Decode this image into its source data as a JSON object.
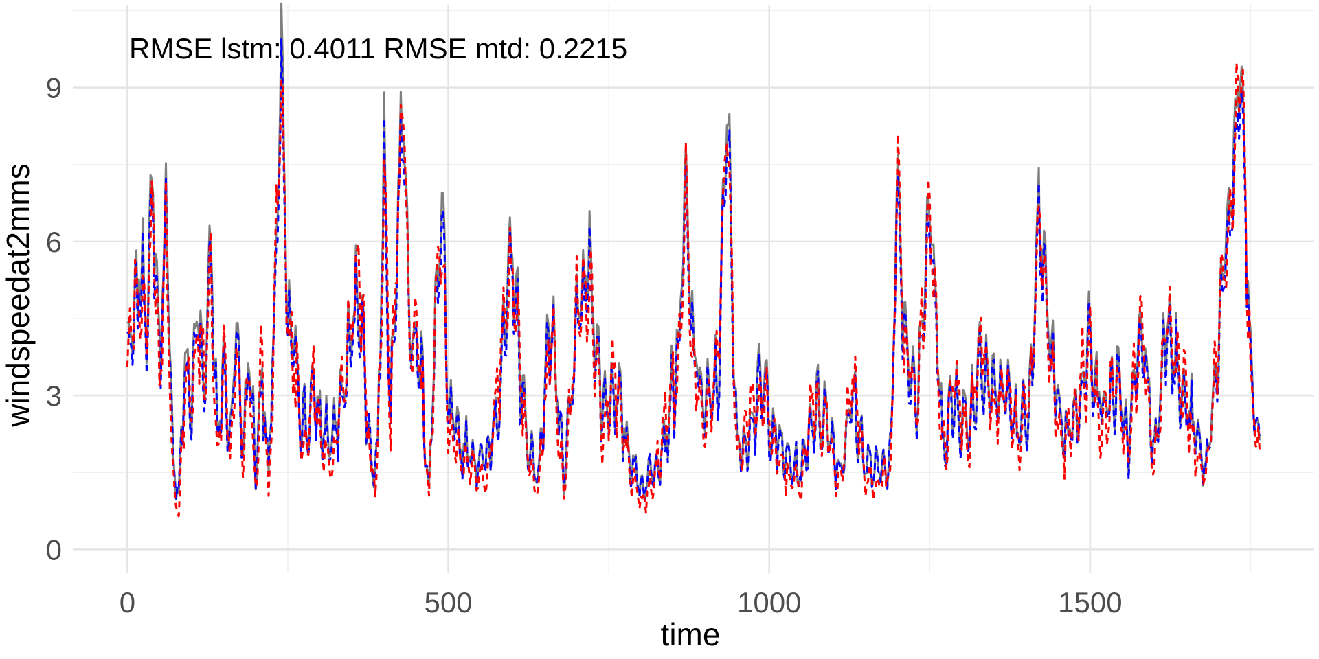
{
  "chart_data": {
    "type": "line",
    "title": "",
    "annotation": "RMSE lstm: 0.4011 RMSE mtd: 0.2215",
    "xlabel": "time",
    "ylabel": "windspeedat2mms",
    "xlim": [
      -85,
      1848
    ],
    "ylim": [
      -0.45,
      10.6
    ],
    "x_ticks": [
      0,
      500,
      1000,
      1500
    ],
    "x_tick_labels": [
      "0",
      "500",
      "1000",
      "1500"
    ],
    "y_ticks": [
      0,
      3,
      6,
      9
    ],
    "y_tick_labels": [
      "0",
      "3",
      "6",
      "9"
    ],
    "grid": true,
    "legend": "none",
    "n_points": 1765,
    "series": [
      {
        "style": "solid",
        "color": "#7f7f7f",
        "sampled_x": [
          0,
          10,
          20,
          30,
          40,
          50,
          60,
          70,
          80,
          90,
          100,
          110,
          120,
          130,
          140,
          150,
          160,
          170,
          180,
          190,
          200,
          210,
          220,
          230,
          240,
          250,
          260,
          270,
          280,
          290,
          300,
          320,
          340,
          360,
          380,
          390,
          400,
          410,
          420,
          430,
          440,
          450,
          460,
          470,
          480,
          490,
          500,
          520,
          540,
          560,
          580,
          600,
          620,
          640,
          660,
          680,
          700,
          720,
          740,
          760,
          780,
          800,
          820,
          840,
          860,
          870,
          880,
          900,
          920,
          935,
          950,
          970,
          990,
          1010,
          1030,
          1050,
          1070,
          1090,
          1110,
          1130,
          1150,
          1170,
          1190,
          1200,
          1210,
          1230,
          1250,
          1270,
          1290,
          1310,
          1330,
          1350,
          1370,
          1390,
          1410,
          1420,
          1440,
          1460,
          1480,
          1500,
          1520,
          1540,
          1560,
          1580,
          1600,
          1620,
          1640,
          1660,
          1680,
          1700,
          1720,
          1735,
          1750,
          1765
        ],
        "sampled_y": [
          3.9,
          4.3,
          5.6,
          4.8,
          7.1,
          3.8,
          6.8,
          2.0,
          1.0,
          3.8,
          2.8,
          4.9,
          3.2,
          6.4,
          2.0,
          3.6,
          2.2,
          4.5,
          1.9,
          3.9,
          1.5,
          3.6,
          1.3,
          5.0,
          9.7,
          4.3,
          4.0,
          2.8,
          2.3,
          3.1,
          2.5,
          2.1,
          3.4,
          5.2,
          1.6,
          1.9,
          7.9,
          2.6,
          6.4,
          9.1,
          4.0,
          4.1,
          3.2,
          1.1,
          4.4,
          6.9,
          2.6,
          2.1,
          1.8,
          1.7,
          3.2,
          5.9,
          2.3,
          1.4,
          4.8,
          1.2,
          4.4,
          5.6,
          2.8,
          3.2,
          2.0,
          1.2,
          1.6,
          2.3,
          4.1,
          7.1,
          4.2,
          2.7,
          3.3,
          8.8,
          1.9,
          2.4,
          3.3,
          2.2,
          1.7,
          1.5,
          2.8,
          2.6,
          1.5,
          3.0,
          1.7,
          1.5,
          1.9,
          7.4,
          4.4,
          3.1,
          6.8,
          2.2,
          3.0,
          2.4,
          3.9,
          3.1,
          3.1,
          2.2,
          3.3,
          6.6,
          3.7,
          2.2,
          2.8,
          4.1,
          2.7,
          3.3,
          2.1,
          4.5,
          1.8,
          4.8,
          3.1,
          2.5,
          1.5,
          4.1,
          7.1,
          9.6,
          3.5,
          1.8
        ]
      },
      {
        "style": "dashed",
        "color": "#0000ff",
        "sampled_x": [
          0,
          10,
          20,
          30,
          40,
          50,
          60,
          70,
          80,
          90,
          100,
          110,
          120,
          130,
          140,
          150,
          160,
          170,
          180,
          190,
          200,
          210,
          220,
          230,
          240,
          250,
          260,
          270,
          280,
          290,
          300,
          320,
          340,
          360,
          380,
          390,
          400,
          410,
          420,
          430,
          440,
          450,
          460,
          470,
          480,
          490,
          500,
          520,
          540,
          560,
          580,
          600,
          620,
          640,
          660,
          680,
          700,
          720,
          740,
          760,
          780,
          800,
          820,
          840,
          860,
          870,
          880,
          900,
          920,
          935,
          950,
          970,
          990,
          1010,
          1030,
          1050,
          1070,
          1090,
          1110,
          1130,
          1150,
          1170,
          1190,
          1200,
          1210,
          1230,
          1250,
          1270,
          1290,
          1310,
          1330,
          1350,
          1370,
          1390,
          1410,
          1420,
          1440,
          1460,
          1480,
          1500,
          1520,
          1540,
          1560,
          1580,
          1600,
          1620,
          1640,
          1660,
          1680,
          1700,
          1720,
          1735,
          1750,
          1765
        ],
        "sampled_y": [
          3.7,
          4.1,
          5.3,
          4.6,
          6.6,
          3.6,
          6.5,
          1.9,
          1.1,
          3.5,
          2.7,
          4.6,
          3.0,
          6.1,
          2.0,
          3.4,
          2.1,
          4.3,
          1.9,
          3.7,
          1.5,
          3.4,
          1.4,
          4.8,
          9.0,
          4.1,
          3.8,
          2.7,
          2.3,
          3.0,
          2.4,
          2.0,
          3.2,
          5.0,
          1.7,
          1.9,
          7.4,
          2.5,
          6.1,
          8.6,
          3.9,
          4.0,
          3.1,
          1.2,
          4.2,
          6.5,
          2.5,
          2.0,
          1.8,
          1.7,
          3.1,
          5.6,
          2.2,
          1.4,
          4.6,
          1.3,
          4.2,
          5.3,
          2.7,
          3.1,
          1.9,
          1.2,
          1.6,
          2.2,
          3.9,
          6.7,
          4.0,
          2.6,
          3.2,
          8.4,
          1.9,
          2.3,
          3.1,
          2.1,
          1.7,
          1.5,
          2.7,
          2.5,
          1.5,
          2.9,
          1.7,
          1.5,
          1.9,
          7.0,
          4.2,
          3.0,
          6.4,
          2.1,
          2.9,
          2.3,
          3.7,
          3.0,
          3.0,
          2.2,
          3.2,
          6.3,
          3.5,
          2.2,
          2.7,
          3.9,
          2.6,
          3.2,
          2.0,
          4.3,
          1.8,
          4.6,
          3.0,
          2.4,
          1.5,
          3.9,
          6.7,
          9.1,
          3.3,
          1.9
        ]
      },
      {
        "style": "dashed",
        "color": "#ff0000",
        "sampled_x": [
          0,
          10,
          20,
          30,
          40,
          50,
          60,
          70,
          80,
          90,
          100,
          110,
          120,
          130,
          140,
          150,
          160,
          170,
          180,
          190,
          200,
          210,
          220,
          230,
          240,
          250,
          260,
          270,
          280,
          290,
          300,
          320,
          340,
          360,
          380,
          390,
          400,
          410,
          420,
          430,
          440,
          450,
          460,
          470,
          480,
          490,
          500,
          520,
          540,
          560,
          580,
          600,
          620,
          640,
          660,
          680,
          700,
          720,
          740,
          760,
          780,
          800,
          820,
          840,
          860,
          870,
          880,
          900,
          920,
          935,
          950,
          970,
          990,
          1010,
          1030,
          1050,
          1070,
          1090,
          1110,
          1130,
          1150,
          1170,
          1190,
          1200,
          1210,
          1230,
          1250,
          1270,
          1290,
          1310,
          1330,
          1350,
          1370,
          1390,
          1410,
          1420,
          1440,
          1460,
          1480,
          1500,
          1520,
          1540,
          1560,
          1580,
          1600,
          1620,
          1640,
          1660,
          1680,
          1700,
          1720,
          1735,
          1750,
          1765
        ],
        "sampled_y": [
          3.2,
          4.8,
          5.0,
          4.2,
          7.0,
          3.2,
          6.2,
          1.5,
          0.6,
          3.2,
          3.0,
          4.2,
          3.4,
          5.8,
          1.6,
          3.8,
          1.8,
          4.0,
          1.6,
          3.4,
          1.1,
          3.8,
          1.0,
          5.2,
          9.2,
          4.5,
          3.6,
          2.5,
          2.0,
          3.4,
          2.2,
          1.7,
          3.6,
          5.6,
          1.4,
          1.6,
          7.6,
          2.2,
          6.0,
          9.0,
          3.6,
          4.4,
          2.8,
          0.9,
          4.6,
          6.2,
          2.3,
          1.8,
          1.5,
          1.4,
          3.5,
          5.7,
          2.0,
          1.1,
          4.5,
          0.9,
          4.6,
          5.0,
          2.4,
          3.5,
          1.7,
          0.9,
          1.3,
          2.6,
          3.6,
          7.0,
          3.8,
          2.3,
          3.6,
          8.6,
          1.6,
          2.7,
          3.0,
          1.9,
          1.4,
          1.2,
          3.1,
          2.3,
          1.2,
          3.2,
          1.4,
          1.2,
          1.6,
          7.8,
          4.0,
          2.8,
          6.5,
          1.9,
          3.3,
          2.0,
          4.2,
          2.8,
          3.4,
          1.9,
          3.6,
          6.4,
          3.4,
          1.9,
          3.0,
          3.8,
          2.4,
          3.6,
          1.8,
          4.8,
          1.5,
          4.4,
          3.4,
          2.2,
          1.2,
          4.4,
          6.8,
          10.0,
          3.2,
          1.5
        ]
      }
    ]
  }
}
